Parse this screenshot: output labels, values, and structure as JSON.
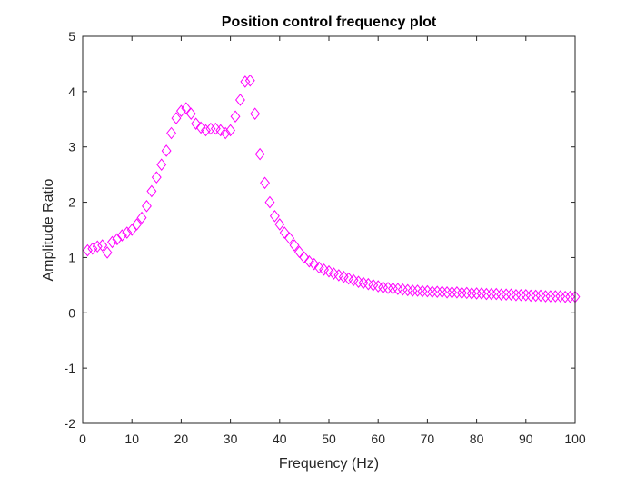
{
  "chart_data": {
    "type": "scatter",
    "title": "Position control frequency plot",
    "xlabel": "Frequency (Hz)",
    "ylabel": "Amplitude Ratio",
    "xlim": [
      0,
      100
    ],
    "ylim": [
      -2,
      5
    ],
    "xticks": [
      0,
      10,
      20,
      30,
      40,
      50,
      60,
      70,
      80,
      90,
      100
    ],
    "yticks": [
      -2,
      -1,
      0,
      1,
      2,
      3,
      4,
      5
    ],
    "grid": false,
    "marker": "diamond",
    "marker_color": "#ff00ff",
    "axis_color": "#262626",
    "series": [
      {
        "x": [
          1,
          2,
          3,
          4,
          5,
          6,
          7,
          8,
          9,
          10,
          11,
          12,
          13,
          14,
          15,
          16,
          17,
          18,
          19,
          20,
          21,
          22,
          23,
          24,
          25,
          26,
          27,
          28,
          29,
          30,
          31,
          32,
          33,
          34,
          35,
          36,
          37,
          38,
          39,
          40,
          41,
          42,
          43,
          44,
          45,
          46,
          47,
          48,
          49,
          50,
          51,
          52,
          53,
          54,
          55,
          56,
          57,
          58,
          59,
          60,
          61,
          62,
          63,
          64,
          65,
          66,
          67,
          68,
          69,
          70,
          71,
          72,
          73,
          74,
          75,
          76,
          77,
          78,
          79,
          80,
          81,
          82,
          83,
          84,
          85,
          86,
          87,
          88,
          89,
          90,
          91,
          92,
          93,
          94,
          95,
          96,
          97,
          98,
          99,
          100
        ],
        "y": [
          1.13,
          1.16,
          1.2,
          1.22,
          1.09,
          1.28,
          1.33,
          1.4,
          1.45,
          1.5,
          1.6,
          1.72,
          1.93,
          2.2,
          2.45,
          2.68,
          2.93,
          3.25,
          3.52,
          3.65,
          3.7,
          3.6,
          3.42,
          3.35,
          3.3,
          3.33,
          3.33,
          3.3,
          3.25,
          3.3,
          3.55,
          3.85,
          4.18,
          4.2,
          3.6,
          2.87,
          2.35,
          2.0,
          1.75,
          1.6,
          1.45,
          1.35,
          1.22,
          1.1,
          1.0,
          0.93,
          0.88,
          0.82,
          0.78,
          0.75,
          0.71,
          0.68,
          0.65,
          0.62,
          0.59,
          0.56,
          0.54,
          0.52,
          0.5,
          0.48,
          0.46,
          0.45,
          0.44,
          0.43,
          0.42,
          0.41,
          0.4,
          0.4,
          0.39,
          0.39,
          0.38,
          0.38,
          0.38,
          0.37,
          0.37,
          0.37,
          0.36,
          0.36,
          0.35,
          0.35,
          0.35,
          0.34,
          0.34,
          0.34,
          0.33,
          0.33,
          0.33,
          0.32,
          0.32,
          0.32,
          0.31,
          0.31,
          0.31,
          0.3,
          0.3,
          0.3,
          0.3,
          0.29,
          0.29,
          0.29
        ]
      }
    ]
  }
}
